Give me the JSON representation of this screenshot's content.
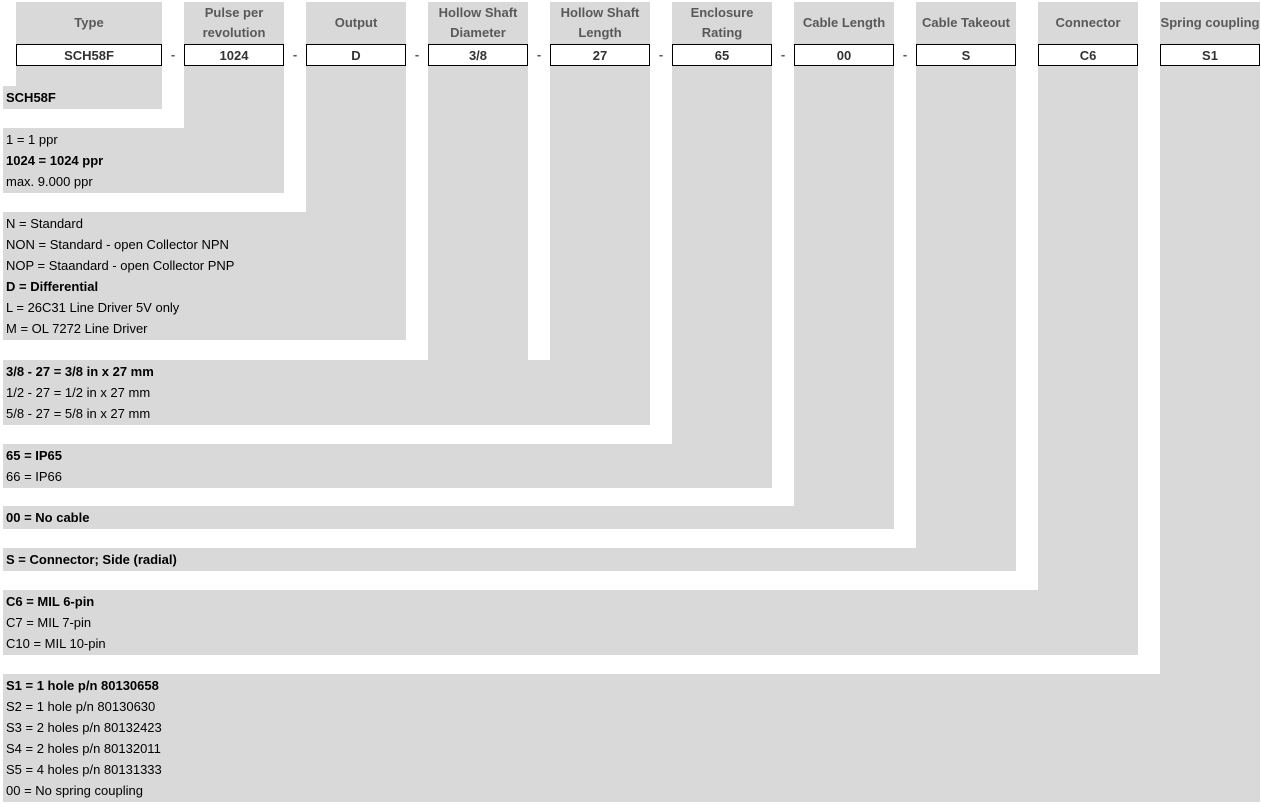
{
  "columns": [
    {
      "header": "Type",
      "value": "SCH58F",
      "dash": "-"
    },
    {
      "header": "Pulse per revolution",
      "value": "1024",
      "dash": "-"
    },
    {
      "header": "Output",
      "value": "D",
      "dash": "-"
    },
    {
      "header": "Hollow Shaft Diameter",
      "value": "3/8",
      "dash": "-"
    },
    {
      "header": "Hollow Shaft Length",
      "value": "27",
      "dash": "-"
    },
    {
      "header": "Enclosure Rating",
      "value": "65",
      "dash": "-"
    },
    {
      "header": "Cable Length",
      "value": "00",
      "dash": "-"
    },
    {
      "header": "Cable Takeout",
      "value": "S",
      "dash": ""
    },
    {
      "header": "Connector",
      "value": "C6",
      "dash": ""
    },
    {
      "header": "Spring coupling",
      "value": "S1",
      "dash": ""
    }
  ],
  "sections": [
    {
      "lines": [
        {
          "text": "SCH58F",
          "bold": true
        }
      ]
    },
    {
      "lines": [
        {
          "text": "1 = 1 ppr",
          "bold": false
        },
        {
          "text": "1024 = 1024 ppr",
          "bold": true
        },
        {
          "text": "max. 9.000 ppr",
          "bold": false
        }
      ]
    },
    {
      "lines": [
        {
          "text": "N = Standard",
          "bold": false
        },
        {
          "text": "NON = Standard - open Collector NPN",
          "bold": false
        },
        {
          "text": "NOP = Staandard - open Collector PNP",
          "bold": false
        },
        {
          "text": "D = Differential",
          "bold": true
        },
        {
          "text": "L = 26C31 Line Driver 5V only",
          "bold": false
        },
        {
          "text": "M = OL 7272 Line Driver",
          "bold": false
        }
      ]
    },
    {
      "lines": [
        {
          "text": "3/8 - 27 = 3/8 in x 27 mm",
          "bold": true
        },
        {
          "text": "1/2 - 27 = 1/2 in x 27 mm",
          "bold": false
        },
        {
          "text": "5/8 - 27 = 5/8 in x 27 mm",
          "bold": false
        }
      ]
    },
    {
      "lines": [
        {
          "text": "65 = IP65",
          "bold": true
        },
        {
          "text": "66 = IP66",
          "bold": false
        }
      ]
    },
    {
      "lines": [
        {
          "text": "00 = No cable",
          "bold": true
        }
      ]
    },
    {
      "lines": [
        {
          "text": "S = Connector; Side (radial)",
          "bold": true
        }
      ]
    },
    {
      "lines": [
        {
          "text": "C6 = MIL 6-pin",
          "bold": true
        },
        {
          "text": "C7 = MIL 7-pin",
          "bold": false
        },
        {
          "text": "C10 = MIL 10-pin",
          "bold": false
        }
      ]
    },
    {
      "lines": [
        {
          "text": "S1 = 1 hole p/n 80130658",
          "bold": true
        },
        {
          "text": "S2 = 1 hole p/n 80130630",
          "bold": false
        },
        {
          "text": "S3 = 2 holes p/n 80132423",
          "bold": false
        },
        {
          "text": "S4 = 2 holes p/n 80132011",
          "bold": false
        },
        {
          "text": "S5 = 4 holes p/n 80131333",
          "bold": false
        },
        {
          "text": "00 = No spring coupling",
          "bold": false
        }
      ]
    }
  ],
  "colors": {
    "panel": "#d9d9d9",
    "header_text": "#595959"
  }
}
